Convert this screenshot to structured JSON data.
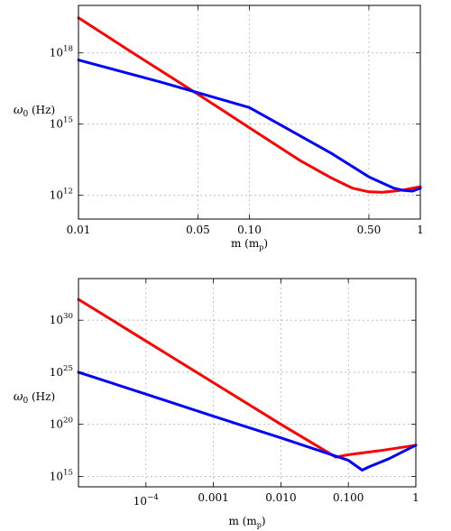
{
  "chart_data": [
    {
      "type": "line",
      "title": "",
      "xlabel": "m (m_p)",
      "ylabel": "ω0 (Hz)",
      "x_scale": "log",
      "y_scale": "log",
      "xlim": [
        0.01,
        1
      ],
      "ylim": [
        100000000000.0,
        1e+20
      ],
      "grid": true,
      "x_ticks": [
        {
          "value": 0.01,
          "label": "0.01"
        },
        {
          "value": 0.05,
          "label": "0.05"
        },
        {
          "value": 0.1,
          "label": "0.10"
        },
        {
          "value": 0.5,
          "label": "0.50"
        },
        {
          "value": 1,
          "label": "1"
        }
      ],
      "y_ticks": [
        {
          "value": 1000000000000.0,
          "base": "10",
          "exp": "12"
        },
        {
          "value": 1000000000000000.0,
          "base": "10",
          "exp": "15"
        },
        {
          "value": 1e+18,
          "base": "10",
          "exp": "18"
        }
      ],
      "series": [
        {
          "color": "#ff0000",
          "x": [
            0.01,
            0.02,
            0.05,
            0.1,
            0.2,
            0.3,
            0.4,
            0.5,
            0.6,
            0.7,
            0.8,
            0.9,
            1.0
          ],
          "y": [
            3e+19,
            1.2e+18,
            1.8e+16,
            700000000000000.0,
            28000000000000.0,
            5500000000000.0,
            2000000000000.0,
            1400000000000.0,
            1350000000000.0,
            1500000000000.0,
            1700000000000.0,
            2000000000000.0,
            2300000000000.0
          ]
        },
        {
          "color": "#0000ff",
          "x": [
            0.01,
            0.03,
            0.1,
            0.3,
            0.5,
            0.7,
            0.8,
            0.9,
            1.0
          ],
          "y": [
            5e+17,
            6e+16,
            5000000000000000.0,
            60000000000000.0,
            6000000000000.0,
            2000000000000.0,
            1600000000000.0,
            1500000000000.0,
            2000000000000.0
          ]
        }
      ]
    },
    {
      "type": "line",
      "title": "",
      "xlabel": "m (m_p)",
      "ylabel": "ω0 (Hz)",
      "x_scale": "log",
      "y_scale": "log",
      "xlim": [
        1e-05,
        1
      ],
      "ylim": [
        100000000000000.0,
        1e+34
      ],
      "grid": true,
      "x_ticks": [
        {
          "value": 0.0001,
          "base": "10",
          "exp": "−4"
        },
        {
          "value": 0.001,
          "label": "0.001"
        },
        {
          "value": 0.01,
          "label": "0.010"
        },
        {
          "value": 0.1,
          "label": "0.100"
        },
        {
          "value": 1,
          "label": "1"
        }
      ],
      "y_ticks": [
        {
          "value": 1000000000000000.0,
          "base": "10",
          "exp": "15"
        },
        {
          "value": 1e+20,
          "base": "10",
          "exp": "20"
        },
        {
          "value": 1e+25,
          "base": "10",
          "exp": "25"
        },
        {
          "value": 1e+30,
          "base": "10",
          "exp": "30"
        }
      ],
      "series": [
        {
          "color": "#ff0000",
          "x": [
            1e-05,
            0.0001,
            0.001,
            0.01,
            0.05,
            0.065,
            0.1,
            0.3,
            1.0
          ],
          "y": [
            1e+32,
            1e+28,
            1e+24,
            1e+20,
            2e+17,
            7e+16,
            1.2e+17,
            3e+17,
            1e+18
          ]
        },
        {
          "color": "#0000ff",
          "x": [
            1e-05,
            0.0001,
            0.001,
            0.01,
            0.1,
            0.16,
            0.2,
            0.4,
            1.0
          ],
          "y": [
            1e+25,
            8e+22,
            6e+20,
            5e+18,
            3.5e+16,
            4000000000000000.0,
            8000000000000000.0,
            5e+16,
            1e+18
          ]
        }
      ]
    }
  ]
}
